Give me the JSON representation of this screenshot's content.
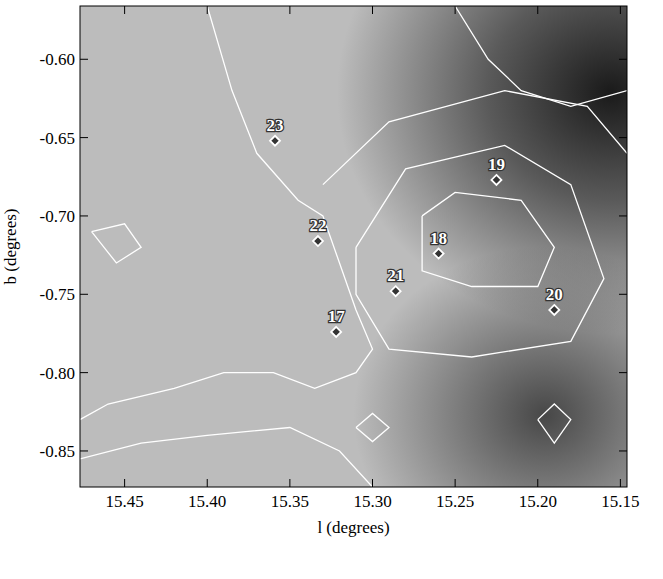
{
  "chart_data": {
    "type": "scatter",
    "x_label": "l (degrees)",
    "y_label": "b (degrees)",
    "xlim": [
      15.477,
      15.146
    ],
    "ylim": [
      -0.873,
      -0.566
    ],
    "xticks": [
      15.45,
      {
        "value": 15.4,
        "label": "15.40"
      },
      15.35,
      {
        "value": 15.3,
        "label": "15.30"
      },
      15.25,
      {
        "value": 15.2,
        "label": "15.20"
      },
      15.15
    ],
    "yticks": [
      {
        "value": -0.6,
        "label": "-0.60"
      },
      -0.65,
      {
        "value": -0.7,
        "label": "-0.70"
      },
      -0.75,
      {
        "value": -0.8,
        "label": "-0.80"
      },
      -0.85
    ],
    "x": [
      15.322,
      15.26,
      15.225,
      15.19,
      15.286,
      15.333,
      15.359
    ],
    "values": [
      -0.774,
      -0.724,
      -0.677,
      -0.76,
      -0.748,
      -0.716,
      -0.652
    ],
    "point_labels": [
      "17",
      "18",
      "19",
      "20",
      "21",
      "22",
      "23"
    ],
    "marker": "diamond",
    "color": "#ffffff",
    "grid": false,
    "contours": [
      {
        "l": [
          15.4,
          15.385,
          15.37,
          15.345,
          15.33,
          15.32,
          15.31,
          15.3,
          15.31,
          15.335,
          15.36,
          15.39,
          15.42,
          15.46,
          15.477
        ],
        "b": [
          -0.566,
          -0.62,
          -0.66,
          -0.69,
          -0.7,
          -0.73,
          -0.76,
          -0.785,
          -0.8,
          -0.81,
          -0.8,
          -0.8,
          -0.81,
          -0.82,
          -0.83
        ]
      },
      {
        "l": [
          15.27,
          15.25,
          15.21,
          15.19,
          15.2,
          15.24,
          15.27,
          15.27
        ],
        "b": [
          -0.7,
          -0.685,
          -0.69,
          -0.72,
          -0.745,
          -0.745,
          -0.735,
          -0.7
        ]
      },
      {
        "l": [
          15.31,
          15.28,
          15.22,
          15.18,
          15.16,
          15.18,
          15.24,
          15.29,
          15.31,
          15.31
        ],
        "b": [
          -0.72,
          -0.67,
          -0.655,
          -0.68,
          -0.74,
          -0.78,
          -0.79,
          -0.785,
          -0.75,
          -0.72
        ]
      },
      {
        "l": [
          15.33,
          15.29,
          15.22,
          15.17,
          15.146
        ],
        "b": [
          -0.68,
          -0.64,
          -0.62,
          -0.63,
          -0.66
        ]
      },
      {
        "l": [
          15.25,
          15.23,
          15.21,
          15.18,
          15.146
        ],
        "b": [
          -0.566,
          -0.6,
          -0.62,
          -0.63,
          -0.62
        ]
      },
      {
        "l": [
          15.2,
          15.19,
          15.18,
          15.19,
          15.2
        ],
        "b": [
          -0.83,
          -0.82,
          -0.83,
          -0.845,
          -0.83
        ]
      },
      {
        "l": [
          15.31,
          15.3,
          15.29,
          15.3,
          15.31
        ],
        "b": [
          -0.835,
          -0.826,
          -0.835,
          -0.844,
          -0.835
        ]
      },
      {
        "l": [
          15.477,
          15.44,
          15.4,
          15.35,
          15.32,
          15.3
        ],
        "b": [
          -0.855,
          -0.845,
          -0.84,
          -0.835,
          -0.85,
          -0.873
        ]
      },
      {
        "l": [
          15.47,
          15.45,
          15.44,
          15.455,
          15.47
        ],
        "b": [
          -0.71,
          -0.705,
          -0.72,
          -0.73,
          -0.71
        ]
      }
    ]
  }
}
